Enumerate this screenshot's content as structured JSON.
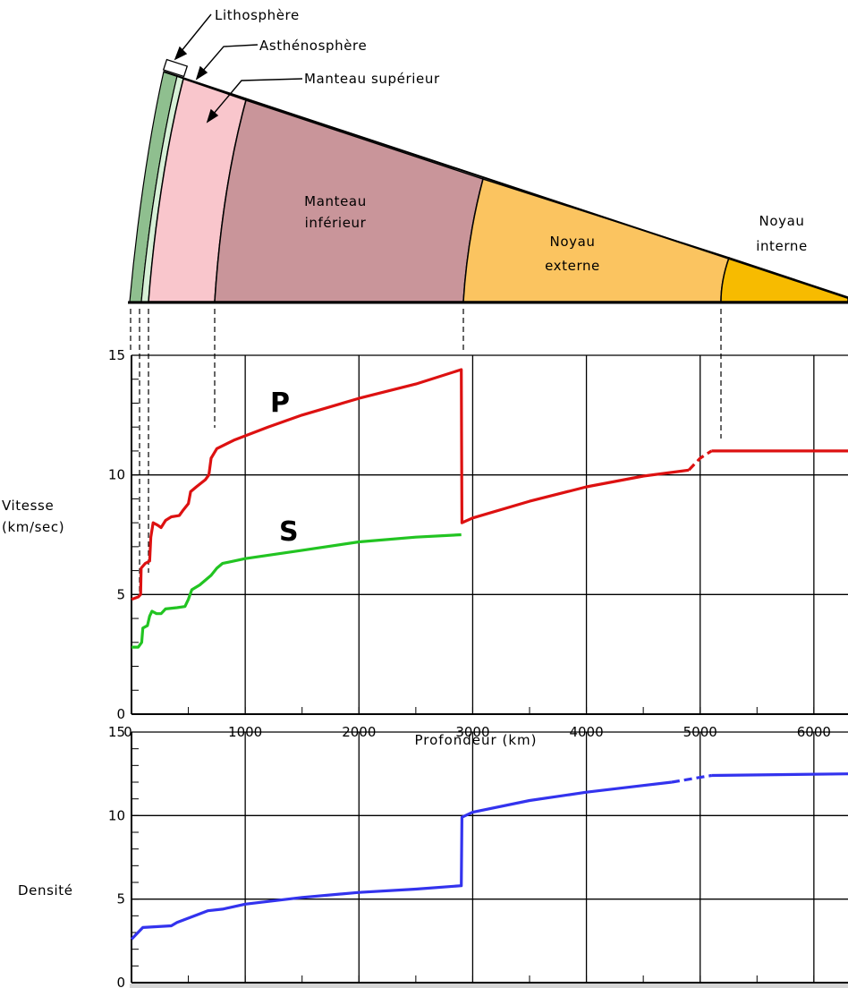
{
  "section": {
    "layers": [
      {
        "name": "Lithosphère",
        "color": "#8fbf8f"
      },
      {
        "name": "Asthénosphère",
        "color": "#d7f0d7"
      },
      {
        "name": "Manteau supérieur",
        "color": "#f9c6cc"
      },
      {
        "name": "Manteau inférieur",
        "line1": "Manteau",
        "line2": "inférieur",
        "color": "#c9959a"
      },
      {
        "name": "Noyau externe",
        "line1": "Noyau",
        "line2": "externe",
        "color": "#fbc460"
      },
      {
        "name": "Noyau interne",
        "line1": "Noyau",
        "line2": "interne",
        "color": "#f7bb00"
      }
    ],
    "boundaries_km": [
      100,
      200,
      700,
      2900,
      5100
    ]
  },
  "chart_data": [
    {
      "type": "line",
      "xlabel": "Profondeur (km)",
      "ylabel_line1": "Vitesse",
      "ylabel_line2": "(km/sec)",
      "xlim": [
        0,
        6300
      ],
      "ylim": [
        0,
        15
      ],
      "xticks": [
        0,
        1000,
        2000,
        3000,
        4000,
        5000,
        6000
      ],
      "yticks": [
        0,
        5,
        10,
        15
      ],
      "grid": true,
      "series": [
        {
          "name": "P",
          "color": "#dd1111",
          "points": [
            [
              0,
              4.8
            ],
            [
              60,
              4.9
            ],
            [
              80,
              5.0
            ],
            [
              85,
              6.1
            ],
            [
              120,
              6.3
            ],
            [
              160,
              6.4
            ],
            [
              170,
              7.4
            ],
            [
              190,
              8.0
            ],
            [
              230,
              7.9
            ],
            [
              260,
              7.8
            ],
            [
              300,
              8.1
            ],
            [
              350,
              8.25
            ],
            [
              420,
              8.3
            ],
            [
              450,
              8.5
            ],
            [
              500,
              8.8
            ],
            [
              520,
              9.3
            ],
            [
              570,
              9.5
            ],
            [
              650,
              9.8
            ],
            [
              680,
              10.0
            ],
            [
              700,
              10.7
            ],
            [
              750,
              11.1
            ],
            [
              900,
              11.45
            ],
            [
              1200,
              12.0
            ],
            [
              1500,
              12.5
            ],
            [
              2000,
              13.2
            ],
            [
              2500,
              13.8
            ],
            [
              2900,
              14.4
            ],
            [
              2905,
              8.0
            ],
            [
              3000,
              8.2
            ],
            [
              3500,
              8.9
            ],
            [
              4000,
              9.5
            ],
            [
              4500,
              9.95
            ],
            [
              4900,
              10.2
            ]
          ],
          "dashed_points": [
            [
              4900,
              10.2
            ],
            [
              5000,
              10.7
            ],
            [
              5100,
              11.0
            ]
          ],
          "points_inner": [
            [
              5100,
              11.0
            ],
            [
              6300,
              11.0
            ]
          ]
        },
        {
          "name": "S",
          "color": "#22c422",
          "points": [
            [
              0,
              2.8
            ],
            [
              60,
              2.8
            ],
            [
              90,
              3.0
            ],
            [
              100,
              3.6
            ],
            [
              140,
              3.7
            ],
            [
              160,
              4.1
            ],
            [
              180,
              4.3
            ],
            [
              220,
              4.2
            ],
            [
              260,
              4.2
            ],
            [
              300,
              4.4
            ],
            [
              400,
              4.45
            ],
            [
              470,
              4.5
            ],
            [
              500,
              4.8
            ],
            [
              530,
              5.2
            ],
            [
              600,
              5.4
            ],
            [
              700,
              5.8
            ],
            [
              750,
              6.1
            ],
            [
              800,
              6.3
            ],
            [
              1000,
              6.5
            ],
            [
              1500,
              6.85
            ],
            [
              2000,
              7.2
            ],
            [
              2500,
              7.4
            ],
            [
              2900,
              7.5
            ]
          ]
        }
      ]
    },
    {
      "type": "line",
      "xlabel": "",
      "ylabel": "Densité",
      "xlim": [
        0,
        6300
      ],
      "ylim": [
        0,
        15
      ],
      "yticks": [
        0,
        5,
        10,
        15
      ],
      "grid": true,
      "series": [
        {
          "name": "",
          "color": "#3333ee",
          "points": [
            [
              0,
              2.6
            ],
            [
              100,
              3.3
            ],
            [
              350,
              3.4
            ],
            [
              400,
              3.6
            ],
            [
              670,
              4.3
            ],
            [
              800,
              4.4
            ],
            [
              1000,
              4.7
            ],
            [
              1500,
              5.1
            ],
            [
              2000,
              5.4
            ],
            [
              2500,
              5.6
            ],
            [
              2900,
              5.8
            ],
            [
              2905,
              9.9
            ],
            [
              3000,
              10.2
            ],
            [
              3500,
              10.9
            ],
            [
              4000,
              11.4
            ],
            [
              4500,
              11.8
            ],
            [
              4750,
              12.0
            ]
          ],
          "dashed_points": [
            [
              4750,
              12.0
            ],
            [
              5100,
              12.4
            ]
          ],
          "points_inner": [
            [
              5100,
              12.4
            ],
            [
              6300,
              12.5
            ]
          ]
        }
      ]
    }
  ]
}
